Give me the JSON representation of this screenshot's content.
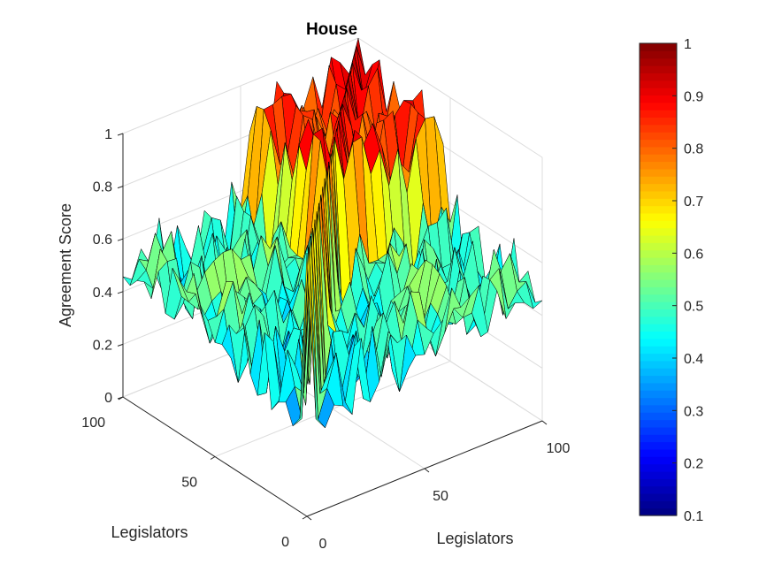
{
  "chart_data": {
    "type": "surface3d",
    "title": "House",
    "xlabel": "Legislators",
    "ylabel": "Legislators",
    "zlabel": "Agreement Score",
    "xlim": [
      0,
      100
    ],
    "ylim": [
      0,
      100
    ],
    "zlim": [
      0,
      1
    ],
    "x_ticks": [
      "0",
      "50",
      "100"
    ],
    "y_ticks": [
      "0",
      "50",
      "100"
    ],
    "z_ticks": [
      "0",
      "0.2",
      "0.4",
      "0.6",
      "0.8",
      "1"
    ],
    "colormap": "jet",
    "colorbar": {
      "range": [
        0.1,
        1
      ],
      "ticks": [
        "0.1",
        "0.2",
        "0.3",
        "0.4",
        "0.5",
        "0.6",
        "0.7",
        "0.8",
        "0.9",
        "1"
      ]
    },
    "grid": true,
    "structure": {
      "blocks": [
        {
          "range": [
            0,
            48
          ],
          "within_block_agreement": 0.45
        },
        {
          "range": [
            52,
            100
          ],
          "within_block_agreement": 0.82
        }
      ],
      "between_block_agreement": 0.5,
      "diagonal_agreement": 1.0,
      "noise_amplitude": 0.15
    }
  }
}
